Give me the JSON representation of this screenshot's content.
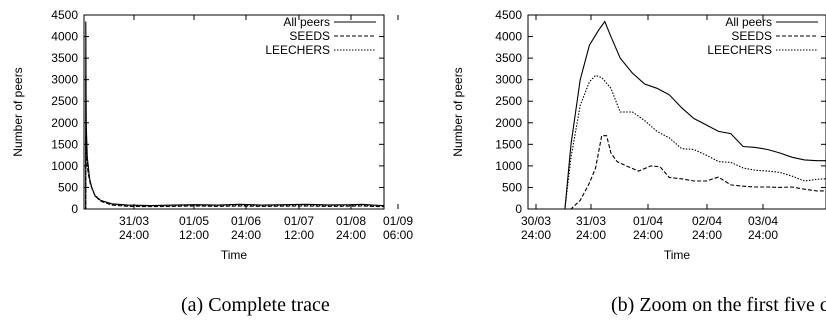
{
  "chart_data": [
    {
      "type": "line",
      "title": "",
      "caption": "(a) Complete trace",
      "xlabel": "Time",
      "ylabel": "Number of peers",
      "ylim": [
        0,
        4500
      ],
      "yticks": [
        0,
        500,
        1000,
        1500,
        2000,
        2500,
        3000,
        3500,
        4000,
        4500
      ],
      "x_tick_labels": [
        [
          "31/03",
          "24:00"
        ],
        [
          "01/05",
          "12:00"
        ],
        [
          "01/06",
          "24:00"
        ],
        [
          "01/07",
          "12:00"
        ],
        [
          "01/08",
          "24:00"
        ],
        [
          "01/09",
          "06:00"
        ]
      ],
      "grid": false,
      "legend_position": "top-right",
      "series": [
        {
          "name": "All peers",
          "style": "solid",
          "points": [
            [
              0.0,
              0
            ],
            [
              0.02,
              0
            ],
            [
              0.15,
              0
            ],
            [
              0.16,
              4350
            ],
            [
              0.2,
              2000
            ],
            [
              0.3,
              1200
            ],
            [
              0.5,
              700
            ],
            [
              0.7,
              500
            ],
            [
              1.0,
              300
            ],
            [
              1.5,
              200
            ],
            [
              2.5,
              120
            ],
            [
              4,
              90
            ],
            [
              6,
              80
            ],
            [
              8,
              90
            ],
            [
              10,
              100
            ],
            [
              12,
              90
            ],
            [
              14,
              110
            ],
            [
              16,
              90
            ],
            [
              18,
              100
            ],
            [
              20,
              110
            ],
            [
              22,
              95
            ],
            [
              24,
              100
            ],
            [
              25,
              110
            ],
            [
              26,
              90
            ],
            [
              27,
              80
            ]
          ]
        },
        {
          "name": "SEEDS",
          "style": "dashed",
          "points": [
            [
              0.0,
              0
            ],
            [
              0.15,
              0
            ],
            [
              0.16,
              1700
            ],
            [
              0.25,
              1100
            ],
            [
              0.4,
              800
            ],
            [
              0.6,
              550
            ],
            [
              1.0,
              300
            ],
            [
              1.5,
              180
            ],
            [
              2.5,
              90
            ],
            [
              4,
              60
            ],
            [
              6,
              55
            ],
            [
              8,
              60
            ],
            [
              10,
              70
            ],
            [
              12,
              60
            ],
            [
              14,
              70
            ],
            [
              16,
              60
            ],
            [
              18,
              65
            ],
            [
              20,
              70
            ],
            [
              22,
              60
            ],
            [
              24,
              65
            ],
            [
              25,
              70
            ],
            [
              26,
              60
            ],
            [
              27,
              55
            ]
          ]
        },
        {
          "name": "LEECHERS",
          "style": "dotted",
          "points": [
            [
              0.0,
              0
            ],
            [
              0.15,
              0
            ],
            [
              0.16,
              3100
            ],
            [
              0.22,
              1500
            ],
            [
              0.35,
              900
            ],
            [
              0.6,
              550
            ],
            [
              1.0,
              320
            ],
            [
              1.5,
              200
            ],
            [
              2.5,
              110
            ],
            [
              4,
              80
            ],
            [
              6,
              70
            ],
            [
              8,
              80
            ],
            [
              10,
              85
            ],
            [
              12,
              80
            ],
            [
              14,
              90
            ],
            [
              16,
              75
            ],
            [
              18,
              85
            ],
            [
              20,
              90
            ],
            [
              22,
              80
            ],
            [
              24,
              85
            ],
            [
              25,
              90
            ],
            [
              26,
              80
            ],
            [
              27,
              70
            ]
          ]
        }
      ]
    },
    {
      "type": "line",
      "title": "",
      "caption": "(b) Zoom on the first five days",
      "xlabel": "Time",
      "ylabel": "Number of peers",
      "ylim": [
        0,
        4500
      ],
      "yticks": [
        0,
        500,
        1000,
        1500,
        2000,
        2500,
        3000,
        3500,
        4000,
        4500
      ],
      "x_tick_labels": [
        [
          "30/03",
          "24:00"
        ],
        [
          "31/03",
          "24:00"
        ],
        [
          "01/04",
          "24:00"
        ],
        [
          "02/04",
          "24:00"
        ],
        [
          "03/04",
          "24:00"
        ]
      ],
      "grid": false,
      "legend_position": "top-right",
      "series": [
        {
          "name": "All peers",
          "style": "solid",
          "points": [
            [
              0.0,
              0
            ],
            [
              0.6,
              0
            ],
            [
              0.7,
              1500
            ],
            [
              0.85,
              3000
            ],
            [
              1.0,
              3800
            ],
            [
              1.15,
              4150
            ],
            [
              1.25,
              4350
            ],
            [
              1.35,
              4000
            ],
            [
              1.5,
              3500
            ],
            [
              1.7,
              3150
            ],
            [
              1.9,
              2900
            ],
            [
              2.1,
              2800
            ],
            [
              2.3,
              2650
            ],
            [
              2.5,
              2350
            ],
            [
              2.7,
              2100
            ],
            [
              2.9,
              1950
            ],
            [
              3.1,
              1800
            ],
            [
              3.3,
              1750
            ],
            [
              3.5,
              1450
            ],
            [
              3.7,
              1430
            ],
            [
              3.9,
              1380
            ],
            [
              4.1,
              1300
            ],
            [
              4.3,
              1200
            ],
            [
              4.5,
              1140
            ],
            [
              4.7,
              1120
            ],
            [
              4.85,
              1120
            ]
          ]
        },
        {
          "name": "SEEDS",
          "style": "dashed",
          "points": [
            [
              0.0,
              0
            ],
            [
              0.7,
              0
            ],
            [
              0.85,
              200
            ],
            [
              1.0,
              600
            ],
            [
              1.1,
              950
            ],
            [
              1.2,
              1700
            ],
            [
              1.28,
              1700
            ],
            [
              1.35,
              1300
            ],
            [
              1.45,
              1100
            ],
            [
              1.6,
              1000
            ],
            [
              1.8,
              880
            ],
            [
              2.0,
              1000
            ],
            [
              2.15,
              980
            ],
            [
              2.3,
              730
            ],
            [
              2.5,
              700
            ],
            [
              2.7,
              650
            ],
            [
              2.9,
              650
            ],
            [
              3.1,
              740
            ],
            [
              3.3,
              560
            ],
            [
              3.5,
              530
            ],
            [
              3.7,
              510
            ],
            [
              3.9,
              510
            ],
            [
              4.1,
              500
            ],
            [
              4.3,
              510
            ],
            [
              4.5,
              460
            ],
            [
              4.7,
              420
            ],
            [
              4.85,
              420
            ]
          ]
        },
        {
          "name": "LEECHERS",
          "style": "dotted",
          "points": [
            [
              0.0,
              0
            ],
            [
              0.6,
              0
            ],
            [
              0.7,
              1200
            ],
            [
              0.85,
              2400
            ],
            [
              1.0,
              2950
            ],
            [
              1.1,
              3100
            ],
            [
              1.2,
              3050
            ],
            [
              1.35,
              2800
            ],
            [
              1.5,
              2250
            ],
            [
              1.7,
              2250
            ],
            [
              1.9,
              2050
            ],
            [
              2.1,
              1800
            ],
            [
              2.3,
              1650
            ],
            [
              2.5,
              1400
            ],
            [
              2.7,
              1380
            ],
            [
              2.9,
              1250
            ],
            [
              3.1,
              1100
            ],
            [
              3.3,
              1080
            ],
            [
              3.5,
              950
            ],
            [
              3.7,
              900
            ],
            [
              3.9,
              880
            ],
            [
              4.1,
              850
            ],
            [
              4.3,
              760
            ],
            [
              4.5,
              650
            ],
            [
              4.7,
              690
            ],
            [
              4.85,
              700
            ]
          ]
        }
      ]
    }
  ]
}
